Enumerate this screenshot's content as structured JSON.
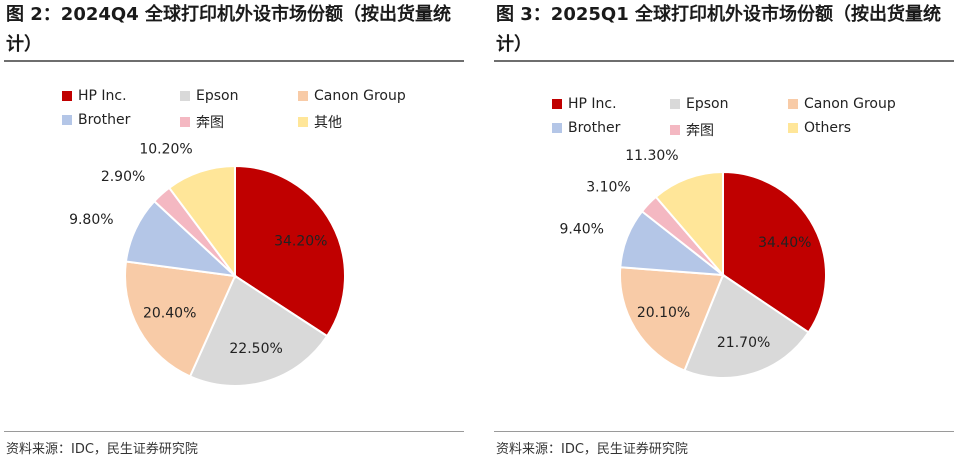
{
  "panels": [
    {
      "title": "图 2：2024Q4 全球打印机外设市场份额（按出货量统计）",
      "source": "资料来源：IDC，民生证券研究院"
    },
    {
      "title": "图 3：2025Q1 全球打印机外设市场份额（按出货量统计）",
      "source": "资料来源：IDC，民生证券研究院"
    }
  ],
  "chart_data": [
    {
      "type": "pie",
      "title": "",
      "legend_placement": "top",
      "categories": [
        "HP Inc.",
        "Epson",
        "Canon Group",
        "Brother",
        "奔图",
        "其他"
      ],
      "values": [
        34.2,
        22.5,
        20.4,
        9.8,
        2.9,
        10.2
      ],
      "data_labels": [
        "34.20%",
        "22.50%",
        "20.40%",
        "9.80%",
        "2.90%",
        "10.20%"
      ],
      "colors": [
        "#c00000",
        "#d9d9d9",
        "#f8cba7",
        "#b4c6e7",
        "#f4b8c2",
        "#ffe699"
      ]
    },
    {
      "type": "pie",
      "title": "",
      "legend_placement": "top",
      "categories": [
        "HP Inc.",
        "Epson",
        "Canon Group",
        "Brother",
        "奔图",
        "Others"
      ],
      "values": [
        34.4,
        21.7,
        20.1,
        9.4,
        3.1,
        11.3
      ],
      "data_labels": [
        "34.40%",
        "21.70%",
        "20.10%",
        "9.40%",
        "3.10%",
        "11.30%"
      ],
      "colors": [
        "#c00000",
        "#d9d9d9",
        "#f8cba7",
        "#b4c6e7",
        "#f4b8c2",
        "#ffe699"
      ]
    }
  ]
}
